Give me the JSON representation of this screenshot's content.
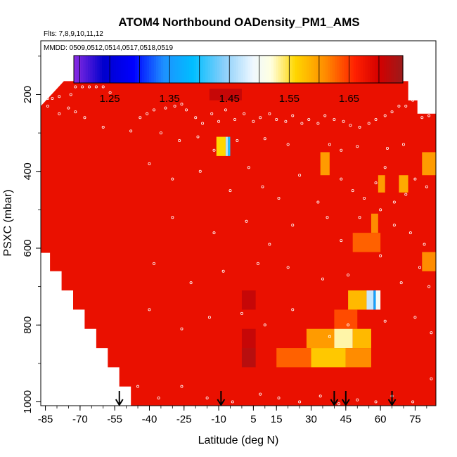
{
  "chart_data": {
    "type": "heatmap",
    "title": "ATOM4 Northbound OADensity_PM1_AMS",
    "flights_note": "Flts: 7,8,9,10,11,12",
    "dates_note": "MMDD: 0509,0512,0514,0517,0518,0519",
    "xlabel": "Latitude (deg N)",
    "ylabel": "PSXC (mbar)",
    "xlim": [
      -87,
      84
    ],
    "ylim": [
      1010,
      60
    ],
    "y_inverted": true,
    "x_ticks": [
      -85,
      -70,
      -55,
      -40,
      -25,
      -10,
      5,
      15,
      30,
      45,
      60,
      75
    ],
    "x_tick_labels": [
      "-85",
      "-70",
      "-55",
      "-40",
      "-25",
      "-10",
      "5",
      "15",
      "30",
      "45",
      "60",
      "75"
    ],
    "y_ticks": [
      200,
      400,
      600,
      800,
      1000
    ],
    "y_tick_labels": [
      "200",
      "400",
      "600",
      "800",
      "1000"
    ],
    "colorbar": {
      "range": [
        1.19,
        1.74
      ],
      "ticks": [
        1.25,
        1.35,
        1.45,
        1.55,
        1.65
      ],
      "tick_labels": [
        "1.25",
        "1.35",
        "1.45",
        "1.55",
        "1.65"
      ],
      "stops": [
        {
          "v": 1.19,
          "c": "#8a2be2"
        },
        {
          "v": 1.24,
          "c": "#0000cd"
        },
        {
          "v": 1.29,
          "c": "#0000ff"
        },
        {
          "v": 1.34,
          "c": "#1e90ff"
        },
        {
          "v": 1.39,
          "c": "#00bfff"
        },
        {
          "v": 1.44,
          "c": "#87cefa"
        },
        {
          "v": 1.49,
          "c": "#f0f8ff"
        },
        {
          "v": 1.52,
          "c": "#ffffe0"
        },
        {
          "v": 1.56,
          "c": "#ffd700"
        },
        {
          "v": 1.61,
          "c": "#ff8c00"
        },
        {
          "v": 1.66,
          "c": "#ff2000"
        },
        {
          "v": 1.7,
          "c": "#d40000"
        },
        {
          "v": 1.74,
          "c": "#9b1b1b"
        }
      ]
    },
    "background_value": 1.68,
    "coverage_profile": [
      {
        "lat": -87,
        "pmax": 612
      },
      {
        "lat": -83,
        "pmax": 612
      },
      {
        "lat": -83,
        "pmax": 660
      },
      {
        "lat": -78,
        "pmax": 660
      },
      {
        "lat": -78,
        "pmax": 710
      },
      {
        "lat": -73,
        "pmax": 710
      },
      {
        "lat": -73,
        "pmax": 760
      },
      {
        "lat": -68,
        "pmax": 760
      },
      {
        "lat": -68,
        "pmax": 810
      },
      {
        "lat": -63,
        "pmax": 810
      },
      {
        "lat": -63,
        "pmax": 860
      },
      {
        "lat": -58,
        "pmax": 860
      },
      {
        "lat": -58,
        "pmax": 910
      },
      {
        "lat": -53,
        "pmax": 910
      },
      {
        "lat": -53,
        "pmax": 960
      },
      {
        "lat": -48,
        "pmax": 960
      },
      {
        "lat": -48,
        "pmax": 1010
      },
      {
        "lat": 84,
        "pmax": 1010
      }
    ],
    "top_profile": [
      {
        "lat": -87,
        "ptop": 230
      },
      {
        "lat": -77,
        "ptop": 165
      },
      {
        "lat": 72,
        "ptop": 165
      },
      {
        "lat": 72,
        "ptop": 215
      },
      {
        "lat": 76,
        "ptop": 215
      },
      {
        "lat": 76,
        "ptop": 250
      },
      {
        "lat": 84,
        "ptop": 250
      }
    ],
    "cells": [
      {
        "lat0": -11,
        "lat1": -7,
        "p0": 310,
        "p1": 360,
        "v": 1.56
      },
      {
        "lat0": -7,
        "lat1": -6,
        "p0": 310,
        "p1": 360,
        "v": 1.46
      },
      {
        "lat0": -6,
        "lat1": -5,
        "p0": 310,
        "p1": 360,
        "v": 1.4
      },
      {
        "lat0": -14,
        "lat1": 0,
        "p0": 185,
        "p1": 215,
        "v": 1.71
      },
      {
        "lat0": 34,
        "lat1": 38,
        "p0": 350,
        "p1": 410,
        "v": 1.6
      },
      {
        "lat0": 59,
        "lat1": 62,
        "p0": 410,
        "p1": 455,
        "v": 1.6
      },
      {
        "lat0": 68,
        "lat1": 72,
        "p0": 410,
        "p1": 455,
        "v": 1.59
      },
      {
        "lat0": 78,
        "lat1": 84,
        "p0": 350,
        "p1": 410,
        "v": 1.6
      },
      {
        "lat0": 56,
        "lat1": 59,
        "p0": 510,
        "p1": 560,
        "v": 1.61
      },
      {
        "lat0": 48,
        "lat1": 60,
        "p0": 560,
        "p1": 610,
        "v": 1.63
      },
      {
        "lat0": 78,
        "lat1": 84,
        "p0": 610,
        "p1": 660,
        "v": 1.61
      },
      {
        "lat0": 46,
        "lat1": 54,
        "p0": 710,
        "p1": 760,
        "v": 1.58
      },
      {
        "lat0": 54,
        "lat1": 57,
        "p0": 710,
        "p1": 760,
        "v": 1.47
      },
      {
        "lat0": 57,
        "lat1": 58,
        "p0": 710,
        "p1": 760,
        "v": 1.36
      },
      {
        "lat0": 58,
        "lat1": 60,
        "p0": 710,
        "p1": 760,
        "v": 1.5
      },
      {
        "lat0": 40,
        "lat1": 50,
        "p0": 760,
        "p1": 810,
        "v": 1.64
      },
      {
        "lat0": 28,
        "lat1": 40,
        "p0": 810,
        "p1": 860,
        "v": 1.6
      },
      {
        "lat0": 40,
        "lat1": 48,
        "p0": 810,
        "p1": 860,
        "v": 1.53
      },
      {
        "lat0": 48,
        "lat1": 56,
        "p0": 810,
        "p1": 860,
        "v": 1.58
      },
      {
        "lat0": 15,
        "lat1": 30,
        "p0": 860,
        "p1": 910,
        "v": 1.63
      },
      {
        "lat0": 30,
        "lat1": 45,
        "p0": 860,
        "p1": 910,
        "v": 1.57
      },
      {
        "lat0": 45,
        "lat1": 56,
        "p0": 860,
        "p1": 910,
        "v": 1.61
      },
      {
        "lat0": 0,
        "lat1": 6,
        "p0": 710,
        "p1": 760,
        "v": 1.71
      },
      {
        "lat0": 0,
        "lat1": 6,
        "p0": 810,
        "p1": 860,
        "v": 1.71
      },
      {
        "lat0": 0,
        "lat1": 6,
        "p0": 860,
        "p1": 910,
        "v": 1.72
      }
    ],
    "flight_arrows_lat": [
      -53,
      -9,
      40,
      45,
      65
    ],
    "sample_points": [
      [
        -86,
        210
      ],
      [
        -84,
        210
      ],
      [
        -82,
        210
      ],
      [
        -79,
        205
      ],
      [
        -74,
        200
      ],
      [
        -72,
        180
      ],
      [
        -69,
        180
      ],
      [
        -66,
        180
      ],
      [
        -63,
        180
      ],
      [
        -60,
        180
      ],
      [
        -57,
        195
      ],
      [
        -84,
        230
      ],
      [
        -79,
        250
      ],
      [
        -75,
        235
      ],
      [
        -72,
        245
      ],
      [
        -68,
        260
      ],
      [
        -60,
        285
      ],
      [
        -48,
        295
      ],
      [
        -44,
        260
      ],
      [
        -41,
        250
      ],
      [
        -38,
        240
      ],
      [
        -33,
        235
      ],
      [
        -29,
        230
      ],
      [
        -26,
        225
      ],
      [
        -24,
        240
      ],
      [
        -20,
        260
      ],
      [
        -17,
        275
      ],
      [
        -13,
        250
      ],
      [
        -10,
        270
      ],
      [
        -7,
        240
      ],
      [
        -3,
        265
      ],
      [
        1,
        250
      ],
      [
        5,
        270
      ],
      [
        8,
        260
      ],
      [
        12,
        250
      ],
      [
        15,
        265
      ],
      [
        19,
        270
      ],
      [
        22,
        255
      ],
      [
        26,
        275
      ],
      [
        29,
        265
      ],
      [
        33,
        275
      ],
      [
        36,
        255
      ],
      [
        40,
        265
      ],
      [
        44,
        270
      ],
      [
        47,
        280
      ],
      [
        51,
        285
      ],
      [
        55,
        275
      ],
      [
        58,
        265
      ],
      [
        62,
        255
      ],
      [
        65,
        245
      ],
      [
        68,
        230
      ],
      [
        71,
        230
      ],
      [
        74,
        215
      ],
      [
        78,
        260
      ],
      [
        81,
        255
      ],
      [
        -35,
        300
      ],
      [
        -27,
        320
      ],
      [
        -19,
        310
      ],
      [
        -12,
        345
      ],
      [
        -2,
        320
      ],
      [
        10,
        315
      ],
      [
        20,
        330
      ],
      [
        38,
        330
      ],
      [
        43,
        345
      ],
      [
        50,
        335
      ],
      [
        63,
        340
      ],
      [
        70,
        330
      ],
      [
        -40,
        380
      ],
      [
        -30,
        420
      ],
      [
        -18,
        400
      ],
      [
        -5,
        450
      ],
      [
        3,
        390
      ],
      [
        9,
        440
      ],
      [
        16,
        470
      ],
      [
        25,
        410
      ],
      [
        33,
        480
      ],
      [
        43,
        420
      ],
      [
        48,
        450
      ],
      [
        53,
        470
      ],
      [
        58,
        430
      ],
      [
        62,
        390
      ],
      [
        66,
        480
      ],
      [
        71,
        460
      ],
      [
        75,
        420
      ],
      [
        80,
        440
      ],
      [
        -30,
        520
      ],
      [
        -12,
        560
      ],
      [
        2,
        530
      ],
      [
        12,
        590
      ],
      [
        22,
        540
      ],
      [
        37,
        520
      ],
      [
        43,
        580
      ],
      [
        51,
        520
      ],
      [
        60,
        500
      ],
      [
        66,
        540
      ],
      [
        73,
        560
      ],
      [
        79,
        590
      ],
      [
        -38,
        640
      ],
      [
        -22,
        690
      ],
      [
        -8,
        660
      ],
      [
        7,
        640
      ],
      [
        20,
        650
      ],
      [
        35,
        680
      ],
      [
        46,
        670
      ],
      [
        60,
        620
      ],
      [
        69,
        690
      ],
      [
        77,
        650
      ],
      [
        81,
        700
      ],
      [
        -40,
        760
      ],
      [
        -26,
        810
      ],
      [
        -14,
        780
      ],
      [
        0,
        770
      ],
      [
        10,
        800
      ],
      [
        22,
        760
      ],
      [
        38,
        830
      ],
      [
        46,
        800
      ],
      [
        62,
        790
      ],
      [
        75,
        780
      ],
      [
        82,
        820
      ],
      [
        -45,
        960
      ],
      [
        -36,
        990
      ],
      [
        -26,
        960
      ],
      [
        -15,
        990
      ],
      [
        -4,
        1000
      ],
      [
        8,
        980
      ],
      [
        16,
        990
      ],
      [
        25,
        1000
      ],
      [
        34,
        985
      ],
      [
        42,
        1005
      ],
      [
        50,
        995
      ],
      [
        58,
        1000
      ],
      [
        65,
        985
      ],
      [
        74,
        1000
      ],
      [
        82,
        940
      ]
    ]
  }
}
